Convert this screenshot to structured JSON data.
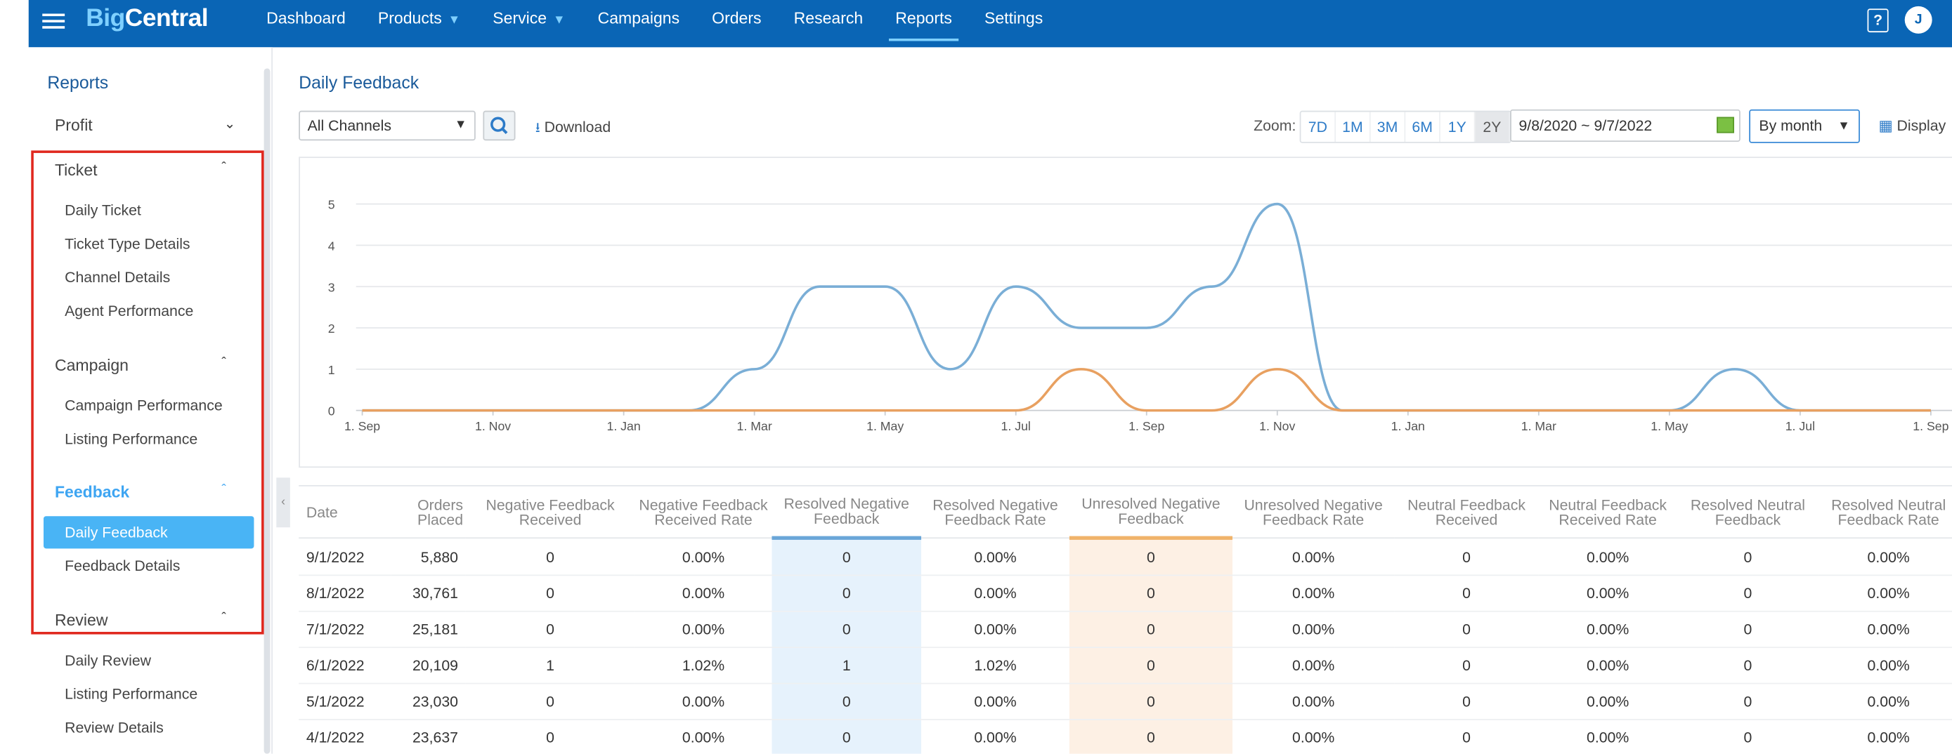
{
  "header": {
    "logo_part1": "Big",
    "logo_part2": "Central",
    "nav": [
      "Dashboard",
      "Products",
      "Service",
      "Campaigns",
      "Orders",
      "Research",
      "Reports",
      "Settings"
    ],
    "active_nav": "Reports",
    "avatar_initial": "J",
    "help_label": "?"
  },
  "sidebar": {
    "title": "Reports",
    "groups": {
      "profit": "Profit",
      "ticket": "Ticket",
      "campaign": "Campaign",
      "feedback": "Feedback",
      "review": "Review"
    },
    "ticket_items": [
      "Daily Ticket",
      "Ticket Type Details",
      "Channel Details",
      "Agent Performance"
    ],
    "campaign_items": [
      "Campaign Performance",
      "Listing Performance"
    ],
    "feedback_items": [
      "Daily Feedback",
      "Feedback Details"
    ],
    "review_items": [
      "Daily Review",
      "Listing Performance",
      "Review Details"
    ],
    "active_item": "Daily Feedback"
  },
  "toolbar": {
    "page_title": "Daily Feedback",
    "channel_select": "All Channels",
    "download_label": "Download",
    "zoom_label": "Zoom:",
    "zoom_options": [
      "7D",
      "1M",
      "3M",
      "6M",
      "1Y",
      "2Y"
    ],
    "zoom_active": "2Y",
    "date_range": "9/8/2020 ~ 9/7/2022",
    "group_by": "By month",
    "display_label": "Display"
  },
  "chart_data": {
    "type": "line",
    "x": [
      "2020-09",
      "2020-10",
      "2020-11",
      "2020-12",
      "2021-01",
      "2021-02",
      "2021-03",
      "2021-04",
      "2021-05",
      "2021-06",
      "2021-07",
      "2021-08",
      "2021-09",
      "2021-10",
      "2021-11",
      "2021-12",
      "2022-01",
      "2022-02",
      "2022-03",
      "2022-04",
      "2022-05",
      "2022-06",
      "2022-07",
      "2022-08",
      "2022-09"
    ],
    "x_tick_labels": [
      "1. Sep",
      "1. Nov",
      "1. Jan",
      "1. Mar",
      "1. May",
      "1. Jul",
      "1. Sep",
      "1. Nov",
      "1. Jan",
      "1. Mar",
      "1. May",
      "1. Jul",
      "1. Sep"
    ],
    "ylim": [
      0,
      5
    ],
    "y_ticks": [
      0,
      1,
      2,
      3,
      4,
      5
    ],
    "grid": true,
    "series": [
      {
        "color": "#7aaed6",
        "values": [
          0,
          0,
          0,
          0,
          0,
          0,
          1,
          3,
          3,
          1,
          3,
          2,
          2,
          3,
          5,
          0,
          0,
          0,
          0,
          0,
          0,
          1,
          0,
          0,
          0
        ]
      },
      {
        "color": "#e8a060",
        "values": [
          0,
          0,
          0,
          0,
          0,
          0,
          0,
          0,
          0,
          0,
          0,
          1,
          0,
          0,
          1,
          0,
          0,
          0,
          0,
          0,
          0,
          0,
          0,
          0,
          0
        ]
      }
    ]
  },
  "table": {
    "headers": [
      "Date",
      "Orders Placed",
      "Negative Feedback Received",
      "Negative Feedback Received Rate",
      "Resolved Negative Feedback",
      "Resolved Negative Feedback Rate",
      "Unresolved Negative Feedback",
      "Unresolved Negative Feedback Rate",
      "Neutral Feedback Received",
      "Neutral Feedback Received Rate",
      "Resolved Neutral Feedback",
      "Resolved Neutral Feedback Rate"
    ],
    "rows": [
      [
        "9/1/2022",
        "5,880",
        "0",
        "0.00%",
        "0",
        "0.00%",
        "0",
        "0.00%",
        "0",
        "0.00%",
        "0",
        "0.00%"
      ],
      [
        "8/1/2022",
        "30,761",
        "0",
        "0.00%",
        "0",
        "0.00%",
        "0",
        "0.00%",
        "0",
        "0.00%",
        "0",
        "0.00%"
      ],
      [
        "7/1/2022",
        "25,181",
        "0",
        "0.00%",
        "0",
        "0.00%",
        "0",
        "0.00%",
        "0",
        "0.00%",
        "0",
        "0.00%"
      ],
      [
        "6/1/2022",
        "20,109",
        "1",
        "1.02%",
        "1",
        "1.02%",
        "0",
        "0.00%",
        "0",
        "0.00%",
        "0",
        "0.00%"
      ],
      [
        "5/1/2022",
        "23,030",
        "0",
        "0.00%",
        "0",
        "0.00%",
        "0",
        "0.00%",
        "0",
        "0.00%",
        "0",
        "0.00%"
      ],
      [
        "4/1/2022",
        "23,637",
        "0",
        "0.00%",
        "0",
        "0.00%",
        "0",
        "0.00%",
        "0",
        "0.00%",
        "0",
        "0.00%"
      ]
    ]
  }
}
